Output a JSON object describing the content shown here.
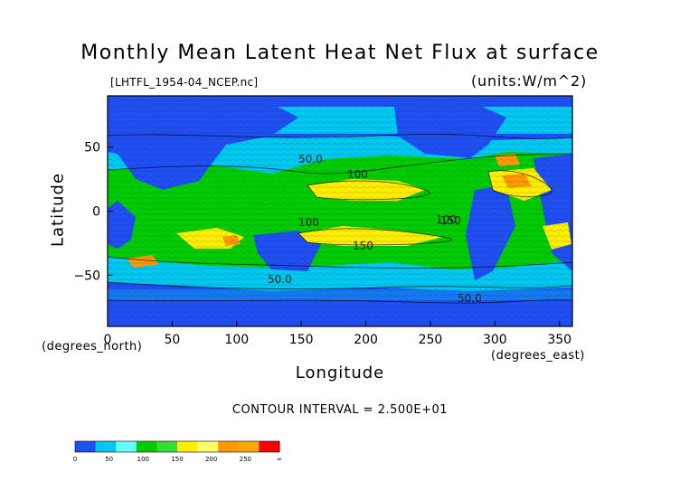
{
  "chart_data": {
    "type": "heatmap",
    "title": "Monthly Mean Latent Heat Net Flux at surface",
    "source_label": "[LHTFL_1954-04_NCEP.nc]",
    "units_label": "(units:W/m^2)",
    "xlabel": "Longitude",
    "ylabel": "Latitude",
    "x_unit_label": "(degrees_east)",
    "y_unit_label": "(degrees_north)",
    "xlim": [
      0,
      360
    ],
    "ylim": [
      -90,
      90
    ],
    "x_ticks": [
      "0",
      "50",
      "100",
      "150",
      "200",
      "250",
      "300",
      "350"
    ],
    "y_ticks": [
      "50",
      "0",
      "−50"
    ],
    "contour_interval_label": "CONTOUR INTERVAL = 2.500E+01",
    "contour_labels": [
      "100",
      "100",
      "100",
      "150",
      "150",
      "50.0",
      "50.0",
      "50.0"
    ],
    "colorbar": {
      "levels": [
        "0",
        "50",
        "100",
        "150",
        "200",
        "250",
        "∞"
      ],
      "colors": [
        "#1f4ff0",
        "#00c8ee",
        "#66ffff",
        "#00cc00",
        "#33dd33",
        "#ffee00",
        "#ffff66",
        "#ff9900",
        "#ffaa00",
        "#ff0000"
      ]
    },
    "bands": [
      {
        "lat": [
          60,
          90
        ],
        "range": "0-50"
      },
      {
        "lat": [
          30,
          60
        ],
        "range": "50-100"
      },
      {
        "lat": [
          -30,
          30
        ],
        "range": "100-200"
      },
      {
        "lat": [
          -60,
          -30
        ],
        "range": "50-100"
      },
      {
        "lat": [
          -90,
          -60
        ],
        "range": "0-50"
      }
    ]
  }
}
